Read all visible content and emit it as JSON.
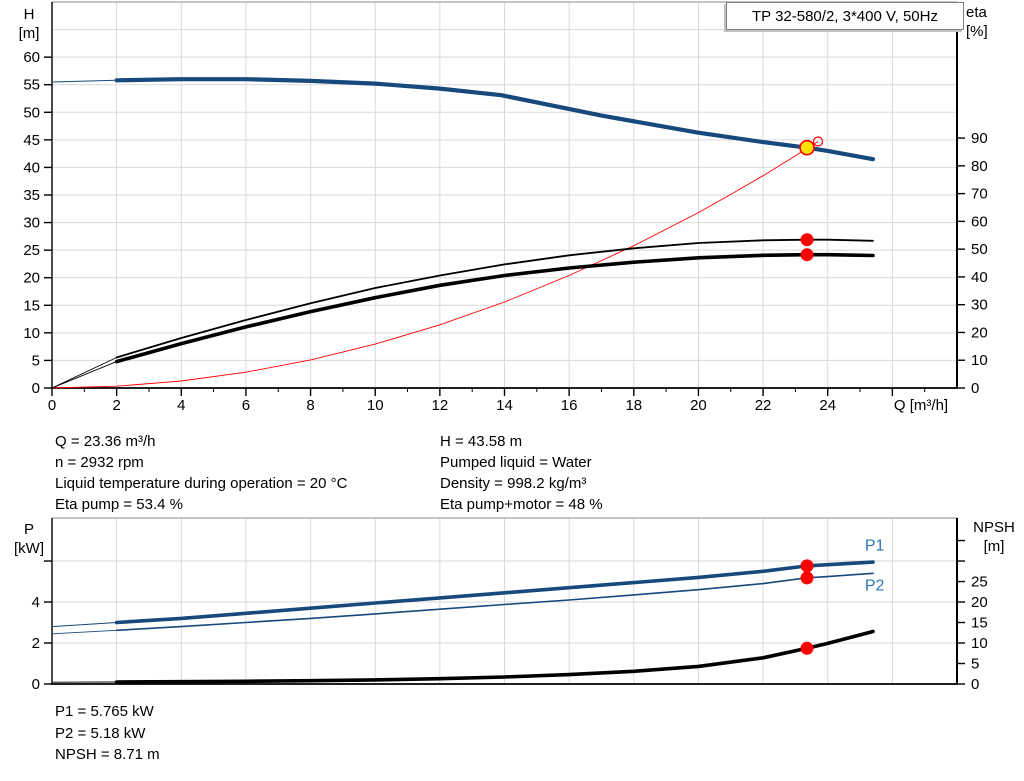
{
  "title_box": "TP 32-580/2, 3*400 V, 50Hz",
  "colors": {
    "curve_blue": "#17497c",
    "series_label_blue": "#2e75b6",
    "red": "#ff0000",
    "yellow": "#ffe000",
    "black": "#000000",
    "grid": "#d9d9d9",
    "frame_gray": "#a0a0a0"
  },
  "annotations": {
    "left": [
      "Q = 23.36 m³/h",
      "n = 2932 rpm",
      "Liquid temperature during operation = 20 °C",
      "Eta pump = 53.4 %"
    ],
    "right": [
      "H = 43.58 m",
      "Pumped liquid = Water",
      "Density = 998.2 kg/m³",
      "Eta pump+motor = 48 %"
    ],
    "bottom": [
      "P1 = 5.765 kW",
      "P2 = 5.18 kW",
      "NPSH = 8.71 m"
    ]
  },
  "chart_data": [
    {
      "id": "head-efficiency-chart",
      "type": "line",
      "title": "TP 32-580/2, 3*400 V, 50Hz",
      "x_axis": {
        "label": "Q [m³/h]",
        "min": 0,
        "max": 28,
        "major_ticks": [
          0,
          2,
          4,
          6,
          8,
          10,
          12,
          14,
          16,
          18,
          20,
          22,
          24,
          26
        ],
        "minor_ticks": [
          1,
          3,
          5,
          7,
          9,
          11,
          13,
          15,
          17,
          19,
          21,
          23,
          25,
          27
        ],
        "labeled": [
          0,
          2,
          4,
          6,
          8,
          10,
          12,
          14,
          16,
          18,
          20,
          22,
          24
        ],
        "grid": [
          2,
          4,
          6,
          8,
          10,
          12,
          14,
          16,
          18,
          20,
          22,
          24,
          26
        ]
      },
      "y_left": {
        "name": "H",
        "unit": "[m]",
        "min": 0,
        "max": 70,
        "ticks": [
          0,
          5,
          10,
          15,
          20,
          25,
          30,
          35,
          40,
          45,
          50,
          55,
          60
        ],
        "labeled": [
          0,
          5,
          10,
          15,
          20,
          25,
          30,
          35,
          40,
          45,
          50,
          55,
          60
        ],
        "grid": [
          5,
          10,
          15,
          20,
          25,
          30,
          35,
          40,
          45,
          50,
          55,
          60,
          65
        ]
      },
      "y_right": {
        "name": "eta",
        "unit": "[%]",
        "min": 0,
        "max": 139,
        "ticks": [
          0,
          10,
          20,
          30,
          40,
          50,
          60,
          70,
          80,
          90
        ],
        "labeled": [
          0,
          10,
          20,
          30,
          40,
          50,
          60,
          70,
          80,
          90
        ],
        "grid": []
      },
      "series": [
        {
          "name": "H-curve",
          "axis": "left",
          "color": "#17497c",
          "width": 4.2,
          "lead_thin": 1,
          "x": [
            0,
            2,
            4,
            6,
            8,
            10,
            12,
            13.9,
            17,
            20,
            22,
            23.36,
            24,
            25.4
          ],
          "y": [
            55.5,
            55.8,
            56.0,
            56.0,
            55.7,
            55.2,
            54.3,
            53.1,
            49.4,
            46.3,
            44.6,
            43.58,
            43.0,
            41.5
          ]
        },
        {
          "name": "system-curve",
          "axis": "left",
          "color": "#ff0000",
          "width": 0.9,
          "lead_thin": 0,
          "x": [
            0,
            2,
            4,
            6,
            8,
            10,
            12,
            14,
            16,
            18,
            20,
            21,
            22,
            23,
            23.7
          ],
          "y": [
            0,
            0.32,
            1.27,
            2.87,
            5.09,
            7.96,
            11.46,
            15.6,
            20.4,
            25.8,
            31.8,
            35.1,
            38.5,
            42.1,
            44.7
          ]
        },
        {
          "name": "eta-pump-curve",
          "axis": "right",
          "color": "#000000",
          "width": 1.8,
          "lead_thin": 0.9,
          "x": [
            0,
            2,
            4,
            6,
            8,
            10,
            12,
            14,
            16,
            18,
            20,
            22,
            23.36,
            24,
            25.4
          ],
          "y": [
            0,
            11,
            18,
            24.5,
            30.5,
            36,
            40.5,
            44.5,
            47.8,
            50.3,
            52.2,
            53.2,
            53.4,
            53.4,
            53.0
          ]
        },
        {
          "name": "eta-pump-motor-curve",
          "axis": "right",
          "color": "#000000",
          "width": 3.6,
          "lead_thin": 0.9,
          "x": [
            0,
            2,
            4,
            6,
            8,
            10,
            12,
            14,
            16,
            18,
            20,
            22,
            23.36,
            24,
            25.4
          ],
          "y": [
            0,
            9.5,
            16,
            22,
            27.5,
            32.5,
            37,
            40.5,
            43.2,
            45.3,
            46.9,
            47.8,
            48,
            48,
            47.7
          ]
        }
      ],
      "markers": [
        {
          "name": "duty-point",
          "axis": "left",
          "x": 23.36,
          "y": 43.58,
          "style": "yellow"
        },
        {
          "name": "requested-duty-point",
          "axis": "left",
          "x": 23.7,
          "y": 44.7,
          "style": "open"
        },
        {
          "name": "eta-pump-point",
          "axis": "right",
          "x": 23.36,
          "y": 53.4,
          "style": "red"
        },
        {
          "name": "eta-pump-motor-point",
          "axis": "right",
          "x": 23.36,
          "y": 48,
          "style": "red"
        }
      ]
    },
    {
      "id": "power-npsh-chart",
      "type": "line",
      "x_axis": {
        "label": "",
        "min": 0,
        "max": 28,
        "major_ticks": [],
        "minor_ticks": [],
        "labeled": [],
        "grid": [
          2,
          4,
          6,
          8,
          10,
          12,
          14,
          16,
          18,
          20,
          22,
          24,
          26
        ]
      },
      "y_left": {
        "name": "P",
        "unit": "[kW]",
        "min": 0,
        "max": 8.1,
        "ticks": [
          0,
          2,
          4,
          6
        ],
        "labeled": [
          0,
          2,
          4
        ],
        "grid": []
      },
      "y_right": {
        "name": "NPSH",
        "unit": "[m]",
        "min": 0,
        "max": 40.5,
        "ticks": [
          0,
          5,
          10,
          15,
          20,
          25,
          30,
          35
        ],
        "labeled": [
          0,
          5,
          10,
          15,
          20,
          25
        ],
        "grid": [
          10,
          20,
          30
        ]
      },
      "series": [
        {
          "name": "P1-curve",
          "axis": "left",
          "color": "#17497c",
          "width": 3.6,
          "lead_thin": 1,
          "label": {
            "text": "P1",
            "x": 25.15,
            "y": 6.75
          },
          "x": [
            0,
            2,
            4,
            6,
            8,
            10,
            12,
            14,
            16,
            18,
            20,
            22,
            23.36,
            24,
            25.4
          ],
          "y": [
            2.8,
            3.0,
            3.2,
            3.45,
            3.7,
            3.95,
            4.2,
            4.45,
            4.7,
            4.95,
            5.2,
            5.5,
            5.765,
            5.82,
            5.95
          ]
        },
        {
          "name": "P2-curve",
          "axis": "left",
          "color": "#17497c",
          "width": 1.6,
          "lead_thin": 0.9,
          "label": {
            "text": "P2",
            "x": 25.15,
            "y": 4.8
          },
          "x": [
            0,
            2,
            4,
            6,
            8,
            10,
            12,
            14,
            16,
            18,
            20,
            22,
            23.36,
            24,
            25.4
          ],
          "y": [
            2.45,
            2.62,
            2.8,
            3.0,
            3.2,
            3.42,
            3.65,
            3.88,
            4.1,
            4.35,
            4.6,
            4.9,
            5.18,
            5.24,
            5.4
          ]
        },
        {
          "name": "NPSH-curve",
          "axis": "right",
          "color": "#000000",
          "width": 3.6,
          "lead_thin": 0.9,
          "x": [
            0,
            2,
            4,
            6,
            8,
            10,
            12,
            14,
            16,
            18,
            20,
            22,
            23.36,
            24,
            25.4
          ],
          "y": [
            0.45,
            0.5,
            0.55,
            0.65,
            0.8,
            1.0,
            1.3,
            1.7,
            2.3,
            3.1,
            4.3,
            6.4,
            8.71,
            9.9,
            12.8
          ]
        }
      ],
      "markers": [
        {
          "name": "p1-point",
          "axis": "left",
          "x": 23.36,
          "y": 5.765,
          "style": "red"
        },
        {
          "name": "p2-point",
          "axis": "left",
          "x": 23.36,
          "y": 5.18,
          "style": "red"
        },
        {
          "name": "npsh-point",
          "axis": "right",
          "x": 23.36,
          "y": 8.71,
          "style": "red"
        }
      ]
    }
  ]
}
